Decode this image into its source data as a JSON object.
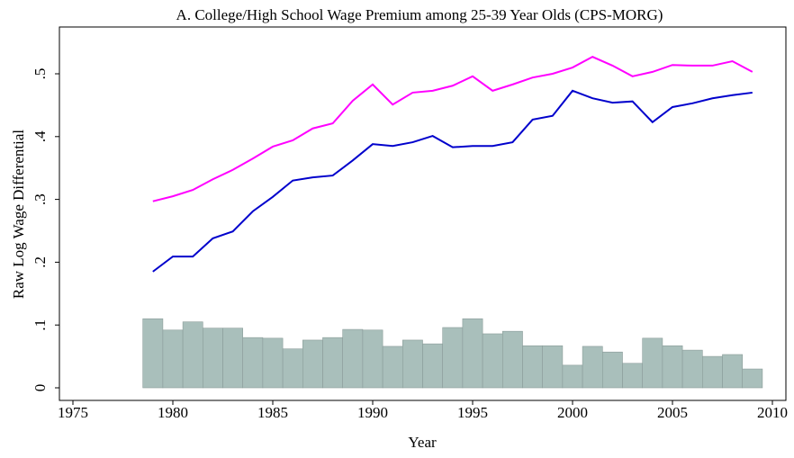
{
  "chart_data": {
    "type": "line",
    "title": "A. College/High School Wage Premium among 25-39 Year Olds (CPS-MORG)",
    "x_label": "Year",
    "y_label": "Raw Log Wage Differential",
    "x": [
      1979,
      1980,
      1981,
      1982,
      1983,
      1984,
      1985,
      1986,
      1987,
      1988,
      1989,
      1990,
      1991,
      1992,
      1993,
      1994,
      1995,
      1996,
      1997,
      1998,
      1999,
      2000,
      2001,
      2002,
      2003,
      2004,
      2005,
      2006,
      2007,
      2008,
      2009
    ],
    "series": [
      {
        "type": "bar",
        "color": "#a9bfbb",
        "values": [
          0.11,
          0.092,
          0.105,
          0.095,
          0.095,
          0.08,
          0.079,
          0.062,
          0.076,
          0.08,
          0.093,
          0.092,
          0.066,
          0.076,
          0.07,
          0.096,
          0.11,
          0.086,
          0.09,
          0.067,
          0.067,
          0.036,
          0.066,
          0.057,
          0.039,
          0.079,
          0.067,
          0.06,
          0.05,
          0.053,
          0.03
        ]
      },
      {
        "type": "line",
        "color": "#ff00ff",
        "values": [
          0.297,
          0.305,
          0.315,
          0.332,
          0.347,
          0.365,
          0.384,
          0.394,
          0.413,
          0.421,
          0.457,
          0.483,
          0.451,
          0.47,
          0.473,
          0.481,
          0.496,
          0.473,
          0.483,
          0.494,
          0.5,
          0.51,
          0.527,
          0.513,
          0.496,
          0.503,
          0.514,
          0.513,
          0.513,
          0.52,
          0.503
        ]
      },
      {
        "type": "line",
        "color": "#0000cc",
        "values": [
          0.185,
          0.209,
          0.209,
          0.238,
          0.249,
          0.281,
          0.304,
          0.33,
          0.335,
          0.338,
          0.362,
          0.388,
          0.385,
          0.391,
          0.401,
          0.383,
          0.385,
          0.385,
          0.391,
          0.427,
          0.433,
          0.473,
          0.461,
          0.454,
          0.456,
          0.423,
          0.447,
          0.453,
          0.461,
          0.466,
          0.47
        ]
      }
    ],
    "xlim": [
      1975,
      2010
    ],
    "xticks": [
      1975,
      1980,
      1985,
      1990,
      1995,
      2000,
      2005,
      2010
    ],
    "ylim": [
      0,
      0.5
    ],
    "yticks": [
      0,
      {
        "value": 0.1,
        "label": ".1"
      },
      {
        "value": 0.2,
        "label": ".2"
      },
      {
        "value": 0.3,
        "label": ".3"
      },
      {
        "value": 0.4,
        "label": ".4"
      },
      {
        "value": 0.5,
        "label": ".5"
      }
    ],
    "grid": false
  }
}
